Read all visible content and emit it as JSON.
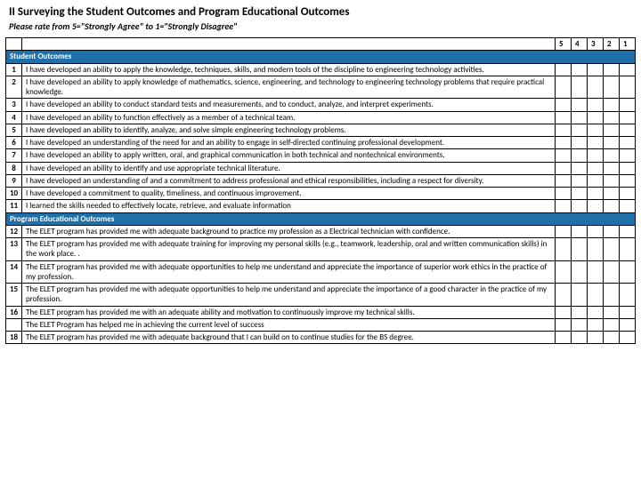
{
  "heading": "II Surveying the Student Outcomes and Program Educational Outcomes",
  "subheading": "Please rate from  5=\"Strongly Agree\" to  1=\"Strongly Disagree\"",
  "rating_headers": [
    "5",
    "4",
    "3",
    "2",
    "1"
  ],
  "section1_label": "Student Outcomes",
  "section2_label": "Program Educational Outcomes",
  "so": [
    {
      "n": "1",
      "t": "I have developed an ability to apply the knowledge, techniques, skills, and modern tools of the discipline to engineering technology activities."
    },
    {
      "n": "2",
      "t": "I have developed an ability to apply knowledge of mathematics, science, engineering, and technology to engineering technology problems that require practical knowledge."
    },
    {
      "n": "3",
      "t": "I have developed an ability to conduct standard tests and measurements, and to conduct, analyze, and interpret experiments."
    },
    {
      "n": "4",
      "t": "I have developed an ability to function effectively as a member of a technical team."
    },
    {
      "n": "5",
      "t": "I have developed an ability to identify, analyze, and solve simple engineering technology problems."
    },
    {
      "n": "6",
      "t": "I have developed an understanding of the need for and an ability to engage in self-directed continuing professional development."
    },
    {
      "n": "7",
      "t": "I have developed an ability to apply written, oral, and graphical communication in both technical and nontechnical environments."
    },
    {
      "n": "8",
      "t": "I have developed an ability to identify and use appropriate technical literature."
    },
    {
      "n": "9",
      "t": "I have developed an understanding of and a commitment to address professional and ethical responsibilities, including a respect for diversity."
    },
    {
      "n": "10",
      "t": "I have developed a commitment to quality, timeliness, and continuous improvement."
    },
    {
      "n": "11",
      "t": "I learned the skills needed to effectively locate, retrieve, and evaluate information"
    }
  ],
  "peo": [
    {
      "n": "12",
      "t": "The ELET program has provided me with adequate background to practice my profession as a Electrical technician with confidence."
    },
    {
      "n": "13",
      "t": "The ELET program has provided me with adequate training for improving my personal skills (e.g., teamwork, leadership, oral and written communication skills) in the work place. ."
    },
    {
      "n": "14",
      "t": "The ELET program has provided me with adequate opportunities to help me understand and appreciate the importance of superior work ethics in the practice of my profession."
    },
    {
      "n": "15",
      "t": "The ELET program has provided me with adequate opportunities to help me understand and appreciate the importance of a good character in the practice of my profession."
    },
    {
      "n": "16",
      "t": "The ELET program has provided me with an adequate ability and motivation to continuously improve my technical skills."
    },
    {
      "n": "",
      "t": "The ELET Program has helped me in achieving the current level of success"
    },
    {
      "n": "18",
      "t": "The ELET program has provided me with adequate background that I can build on to continue studies for the BS degree."
    }
  ],
  "colors": {
    "section_bg": "#1f6fa8",
    "section_fg": "#ffffff",
    "border": "#000000",
    "triangle": "#2b7bb9"
  }
}
